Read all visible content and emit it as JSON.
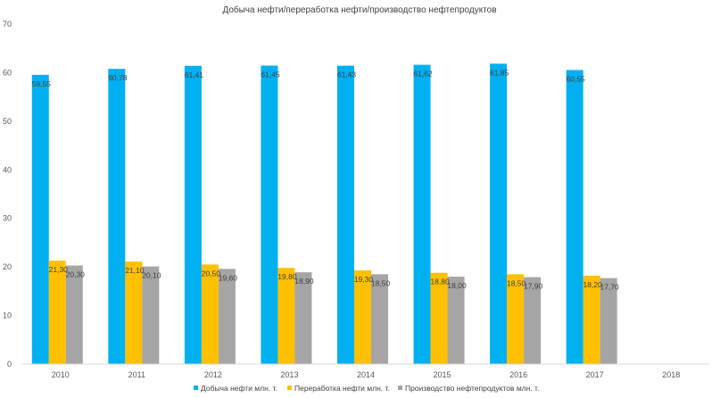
{
  "chart_data": {
    "type": "bar",
    "title": "Добыча нефти/переработка нефти/производство нефтепродуктов",
    "categories": [
      "2010",
      "2011",
      "2012",
      "2013",
      "2014",
      "2015",
      "2016",
      "2017",
      "2018"
    ],
    "series": [
      {
        "name": "Добыча нефти млн. т.",
        "color": "#00b0f0",
        "values": [
          59.55,
          60.78,
          61.41,
          61.45,
          61.43,
          61.62,
          61.85,
          60.55,
          null
        ],
        "labels": [
          "59,55",
          "60,78",
          "61,41",
          "61,45",
          "61,43",
          "61,62",
          "61,85",
          "60,55",
          ""
        ]
      },
      {
        "name": "Переработка нефти млн. т.",
        "color": "#ffc000",
        "values": [
          21.3,
          21.1,
          20.5,
          19.8,
          19.3,
          18.8,
          18.5,
          18.2,
          null
        ],
        "labels": [
          "21,30",
          "21,10",
          "20,50",
          "19,80",
          "19,30",
          "18,80",
          "18,50",
          "18,20",
          ""
        ]
      },
      {
        "name": "Производство нефтепродуктов млн. т.",
        "color": "#a5a5a5",
        "values": [
          20.3,
          20.1,
          19.6,
          18.9,
          18.5,
          18.0,
          17.9,
          17.7,
          null
        ],
        "labels": [
          "20,30",
          "20,10",
          "19,60",
          "18,90",
          "18,50",
          "18,00",
          "17,90",
          "17,70",
          ""
        ]
      }
    ],
    "ylim": [
      0,
      70
    ],
    "yticks": [
      "0",
      "10",
      "20",
      "30",
      "40",
      "50",
      "60",
      "70"
    ],
    "grid": false,
    "legend_position": "bottom"
  }
}
